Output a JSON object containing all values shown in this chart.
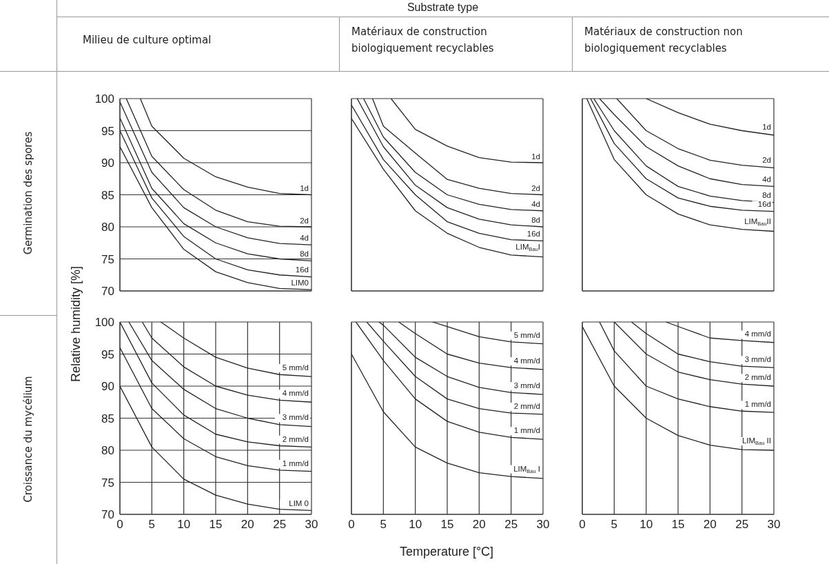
{
  "chart_data": [
    {
      "type": "line",
      "title": "Milieu de culture optimal",
      "annotations": [
        "Substrate type",
        "Germination des spores"
      ],
      "xlim": [
        0,
        30
      ],
      "xticks": [
        0,
        5,
        10,
        15,
        20,
        25,
        30
      ],
      "ylim": [
        70,
        100
      ],
      "yticks": [
        70,
        75,
        80,
        85,
        90,
        95,
        100
      ],
      "grid": true,
      "tick_labels": "y",
      "series": [
        {
          "name": "1d",
          "color": "#222222",
          "x": [
            3.2,
            5,
            10,
            15,
            20,
            25,
            30
          ],
          "values": [
            100,
            95.7,
            90.7,
            87.8,
            86.2,
            85.2,
            85
          ]
        },
        {
          "name": "2d",
          "color": "#222222",
          "x": [
            1,
            5,
            10,
            15,
            20,
            25,
            30
          ],
          "values": [
            100,
            91,
            85.8,
            82.6,
            80.8,
            80.1,
            80
          ]
        },
        {
          "name": "4d",
          "color": "#222222",
          "x": [
            0,
            5,
            10,
            15,
            20,
            25,
            30
          ],
          "values": [
            99.5,
            88.5,
            83,
            80,
            78.3,
            77.4,
            77.2
          ]
        },
        {
          "name": "8d",
          "color": "#222222",
          "x": [
            0,
            5,
            10,
            15,
            20,
            25,
            30
          ],
          "values": [
            97,
            86,
            80.5,
            77.5,
            75.8,
            75,
            74.7
          ]
        },
        {
          "name": "16d",
          "color": "#222222",
          "x": [
            0,
            5,
            10,
            15,
            20,
            25,
            30
          ],
          "values": [
            95,
            84.5,
            78.5,
            75,
            73.3,
            72.5,
            72.2
          ]
        },
        {
          "name": "LIM0",
          "color": "#222222",
          "x": [
            0,
            5,
            10,
            15,
            20,
            25,
            30
          ],
          "values": [
            92.5,
            83,
            76.5,
            73,
            71.3,
            70.4,
            70.2
          ]
        }
      ]
    },
    {
      "type": "line",
      "title": "Matériaux de construction biologiquement recyclables",
      "xlim": [
        0,
        30
      ],
      "xticks": [
        0,
        5,
        10,
        15,
        20,
        25,
        30
      ],
      "ylim": [
        70,
        100
      ],
      "yticks": [
        70,
        75,
        80,
        85,
        90,
        95,
        100
      ],
      "grid": true,
      "tick_labels": false,
      "series": [
        {
          "name": "1d",
          "color": "#222222",
          "x": [
            6.2,
            10,
            15,
            20,
            25,
            30
          ],
          "values": [
            100,
            95.2,
            92.6,
            90.8,
            90.1,
            90
          ]
        },
        {
          "name": "2d",
          "color": "#222222",
          "x": [
            3.3,
            5,
            10,
            15,
            20,
            25,
            30
          ],
          "values": [
            100,
            95.7,
            91.5,
            87.4,
            86,
            85.2,
            85
          ]
        },
        {
          "name": "4d",
          "color": "#222222",
          "x": [
            1.9,
            5,
            10,
            15,
            20,
            25,
            30
          ],
          "values": [
            100,
            94,
            88.5,
            85,
            83.5,
            82.7,
            82.5
          ]
        },
        {
          "name": "8d",
          "color": "#222222",
          "x": [
            0.9,
            5,
            10,
            15,
            20,
            25,
            30
          ],
          "values": [
            100,
            92.5,
            86.5,
            83,
            81.2,
            80.3,
            80
          ]
        },
        {
          "name": "16d",
          "color": "#222222",
          "x": [
            0,
            5,
            10,
            15,
            20,
            25,
            30
          ],
          "values": [
            99,
            90.5,
            85,
            80.8,
            79,
            78,
            77.8
          ]
        },
        {
          "name": "LIM$_{Bau}$I",
          "color": "#222222",
          "x": [
            0,
            5,
            10,
            15,
            20,
            25,
            30
          ],
          "values": [
            96.9,
            89,
            82.5,
            79,
            76.8,
            75.6,
            75.3
          ]
        }
      ]
    },
    {
      "type": "line",
      "title": "Matériaux de construction non biologiquement recyclables",
      "xlim": [
        0,
        30
      ],
      "xticks": [
        0,
        5,
        10,
        15,
        20,
        25,
        30
      ],
      "ylim": [
        70,
        100
      ],
      "yticks": [
        70,
        75,
        80,
        85,
        90,
        95,
        100
      ],
      "grid": true,
      "tick_labels": false,
      "series": [
        {
          "name": "1d",
          "color": "#222222",
          "x": [
            10,
            15,
            20,
            25,
            30
          ],
          "values": [
            100,
            97.8,
            96,
            95,
            94.3
          ]
        },
        {
          "name": "2d",
          "color": "#222222",
          "x": [
            5.4,
            10,
            15,
            20,
            25,
            30
          ],
          "values": [
            100,
            95,
            92.2,
            90.4,
            89.6,
            89.2
          ]
        },
        {
          "name": "4d",
          "color": "#222222",
          "x": [
            2.7,
            5,
            10,
            15,
            20,
            25,
            30
          ],
          "values": [
            100,
            97.5,
            92.5,
            89.5,
            87.5,
            86.6,
            86.3
          ]
        },
        {
          "name": "8d",
          "color": "#222222",
          "x": [
            1.8,
            5,
            10,
            15,
            20,
            25,
            30
          ],
          "values": [
            100,
            95,
            89.5,
            86.3,
            84.8,
            84.1,
            83.8
          ]
        },
        {
          "name": "16d",
          "color": "#222222",
          "x": [
            1.3,
            5,
            10,
            15,
            20,
            25,
            30
          ],
          "values": [
            100,
            93,
            87.5,
            84.5,
            83.2,
            82.6,
            82.4
          ]
        },
        {
          "name": "LIM$_{Bau}$II",
          "color": "#222222",
          "x": [
            0.7,
            5,
            10,
            15,
            20,
            25,
            30
          ],
          "values": [
            100,
            90.5,
            85,
            82,
            80.3,
            79.6,
            79.3
          ]
        }
      ]
    },
    {
      "type": "line",
      "ylabel": "Relative humidity [%]",
      "annotations": [
        "Croissance du mycélium"
      ],
      "xlim": [
        0,
        30
      ],
      "xticks": [
        0,
        5,
        10,
        15,
        20,
        25,
        30
      ],
      "ylim": [
        70,
        100
      ],
      "yticks": [
        70,
        75,
        80,
        85,
        90,
        95,
        100
      ],
      "grid": true,
      "series": [
        {
          "name": "5 mm/d",
          "color": "#222222",
          "x": [
            6.4,
            10,
            15,
            20,
            25,
            30
          ],
          "values": [
            100,
            97.5,
            94.5,
            92.8,
            91.8,
            91.5
          ]
        },
        {
          "name": "4 mm/d",
          "color": "#222222",
          "x": [
            3.5,
            5,
            10,
            15,
            20,
            25,
            30
          ],
          "values": [
            100,
            97.5,
            93,
            90,
            88.6,
            87.8,
            87.5
          ]
        },
        {
          "name": "3 mm/d",
          "color": "#222222",
          "x": [
            1.4,
            5,
            10,
            15,
            20,
            25,
            30
          ],
          "values": [
            100,
            94,
            89.5,
            86.5,
            85,
            84,
            83.7
          ]
        },
        {
          "name": "2 mm/d",
          "color": "#222222",
          "x": [
            0,
            5,
            10,
            15,
            20,
            25,
            30
          ],
          "values": [
            100,
            90.5,
            85.5,
            82.5,
            81.3,
            80.7,
            80.5
          ]
        },
        {
          "name": "1 mm/d",
          "color": "#222222",
          "x": [
            0,
            5,
            10,
            15,
            20,
            25,
            30
          ],
          "values": [
            96,
            86.5,
            81.8,
            79,
            77.6,
            76.9,
            76.7
          ]
        },
        {
          "name": "LIM 0",
          "color": "#222222",
          "x": [
            0,
            5,
            10,
            15,
            20,
            25,
            30
          ],
          "values": [
            90,
            80.5,
            75.5,
            73,
            71.6,
            70.8,
            70.6
          ]
        }
      ]
    },
    {
      "type": "line",
      "xlabel": "Temperature [°C]",
      "xlim": [
        0,
        30
      ],
      "xticks": [
        0,
        5,
        10,
        15,
        20,
        25,
        30
      ],
      "ylim": [
        70,
        100
      ],
      "yticks": [
        70,
        75,
        80,
        85,
        90,
        95,
        100
      ],
      "grid": true,
      "tick_labels": "x",
      "series": [
        {
          "name": "5 mm/d",
          "color": "#222222",
          "x": [
            12.7,
            15,
            20,
            25,
            30
          ],
          "values": [
            100,
            99.3,
            97.7,
            96.9,
            96.6
          ]
        },
        {
          "name": "4 mm/d",
          "color": "#222222",
          "x": [
            7.4,
            10,
            15,
            20,
            25,
            30
          ],
          "values": [
            100,
            98.2,
            95,
            93.6,
            92.9,
            92.6
          ]
        },
        {
          "name": "3 mm/d",
          "color": "#222222",
          "x": [
            4.3,
            5,
            10,
            15,
            20,
            25,
            30
          ],
          "values": [
            100,
            99.5,
            94.5,
            91.5,
            89.8,
            89,
            88.7
          ]
        },
        {
          "name": "2 mm/d",
          "color": "#222222",
          "x": [
            2.4,
            5,
            10,
            15,
            20,
            25,
            30
          ],
          "values": [
            100,
            97,
            91.5,
            88,
            86.5,
            85.8,
            85.6
          ]
        },
        {
          "name": "1 mm/d",
          "color": "#222222",
          "x": [
            0.7,
            5,
            10,
            15,
            20,
            25,
            30
          ],
          "values": [
            100,
            94,
            88,
            84.5,
            82.8,
            82,
            81.7
          ]
        },
        {
          "name": "LIM$_{Bau}$ I",
          "color": "#222222",
          "x": [
            0,
            5,
            10,
            15,
            20,
            25,
            30
          ],
          "values": [
            95,
            86,
            80.5,
            78,
            76.5,
            75.9,
            75.6
          ]
        }
      ]
    },
    {
      "type": "line",
      "xlim": [
        0,
        30
      ],
      "xticks": [
        0,
        5,
        10,
        15,
        20,
        25,
        30
      ],
      "ylim": [
        70,
        100
      ],
      "yticks": [
        70,
        75,
        80,
        85,
        90,
        95,
        100
      ],
      "grid": true,
      "tick_labels": "x",
      "series": [
        {
          "name": "4 mm/d",
          "color": "#222222",
          "x": [
            13.1,
            15,
            20,
            25,
            30
          ],
          "values": [
            100,
            99.3,
            97.5,
            97.1,
            96.8
          ]
        },
        {
          "name": "3 mm/d",
          "color": "#222222",
          "x": [
            7.7,
            10,
            15,
            20,
            25,
            30
          ],
          "values": [
            100,
            98.2,
            95,
            93.8,
            93.1,
            92.9
          ]
        },
        {
          "name": "2 mm/d",
          "color": "#222222",
          "x": [
            5,
            10,
            15,
            20,
            25,
            30
          ],
          "values": [
            100,
            95,
            92.2,
            91,
            90.3,
            90
          ]
        },
        {
          "name": "1 mm/d",
          "color": "#222222",
          "x": [
            2.7,
            5,
            10,
            15,
            20,
            25,
            30
          ],
          "values": [
            100,
            95.5,
            90,
            88,
            86.8,
            86.1,
            85.9
          ]
        },
        {
          "name": "LIM$_{Bau}$ II",
          "color": "#222222",
          "x": [
            0,
            5,
            10,
            15,
            20,
            25,
            30
          ],
          "values": [
            99.3,
            90,
            85,
            82.3,
            80.8,
            80.1,
            80
          ]
        }
      ]
    }
  ]
}
